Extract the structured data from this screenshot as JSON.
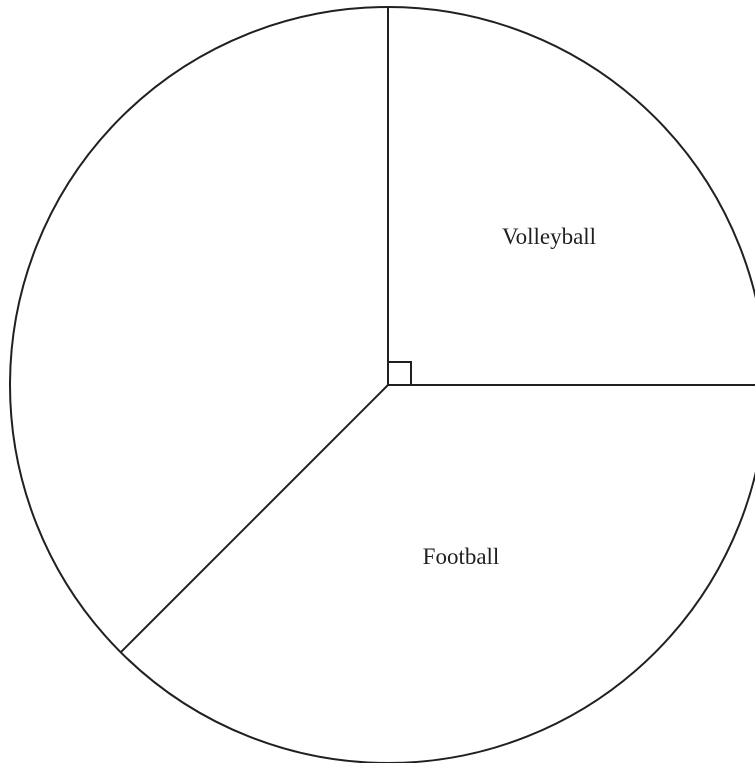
{
  "chart_data": {
    "type": "pie",
    "slices": [
      {
        "label": "Volleyball",
        "angle_deg": 90
      },
      {
        "label": "Football",
        "angle_deg": 135
      },
      {
        "label": "",
        "angle_deg": 135
      }
    ],
    "right_angle_marker_on": "Volleyball",
    "colors": {
      "stroke": "#231f20",
      "fill": "#ffffff",
      "text": "#231f20"
    }
  }
}
